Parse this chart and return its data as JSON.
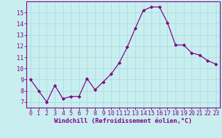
{
  "x": [
    0,
    1,
    2,
    3,
    4,
    5,
    6,
    7,
    8,
    9,
    10,
    11,
    12,
    13,
    14,
    15,
    16,
    17,
    18,
    19,
    20,
    21,
    22,
    23
  ],
  "y": [
    9.0,
    8.0,
    7.0,
    8.5,
    7.3,
    7.5,
    7.5,
    9.1,
    8.1,
    8.8,
    9.5,
    10.5,
    11.9,
    13.6,
    15.2,
    15.5,
    15.5,
    14.1,
    12.1,
    12.1,
    11.4,
    11.2,
    10.7,
    10.4
  ],
  "line_color": "#800080",
  "marker": "D",
  "marker_size": 2.2,
  "bg_color": "#c8eef0",
  "grid_color": "#aadddd",
  "xlabel": "Windchill (Refroidissement éolien,°C)",
  "ylim": [
    6.5,
    16.0
  ],
  "yticks": [
    7,
    8,
    9,
    10,
    11,
    12,
    13,
    14,
    15
  ],
  "xlim": [
    -0.5,
    23.5
  ],
  "xticks": [
    0,
    1,
    2,
    3,
    4,
    5,
    6,
    7,
    8,
    9,
    10,
    11,
    12,
    13,
    14,
    15,
    16,
    17,
    18,
    19,
    20,
    21,
    22,
    23
  ],
  "label_fontsize": 6.5,
  "tick_fontsize": 6.0
}
